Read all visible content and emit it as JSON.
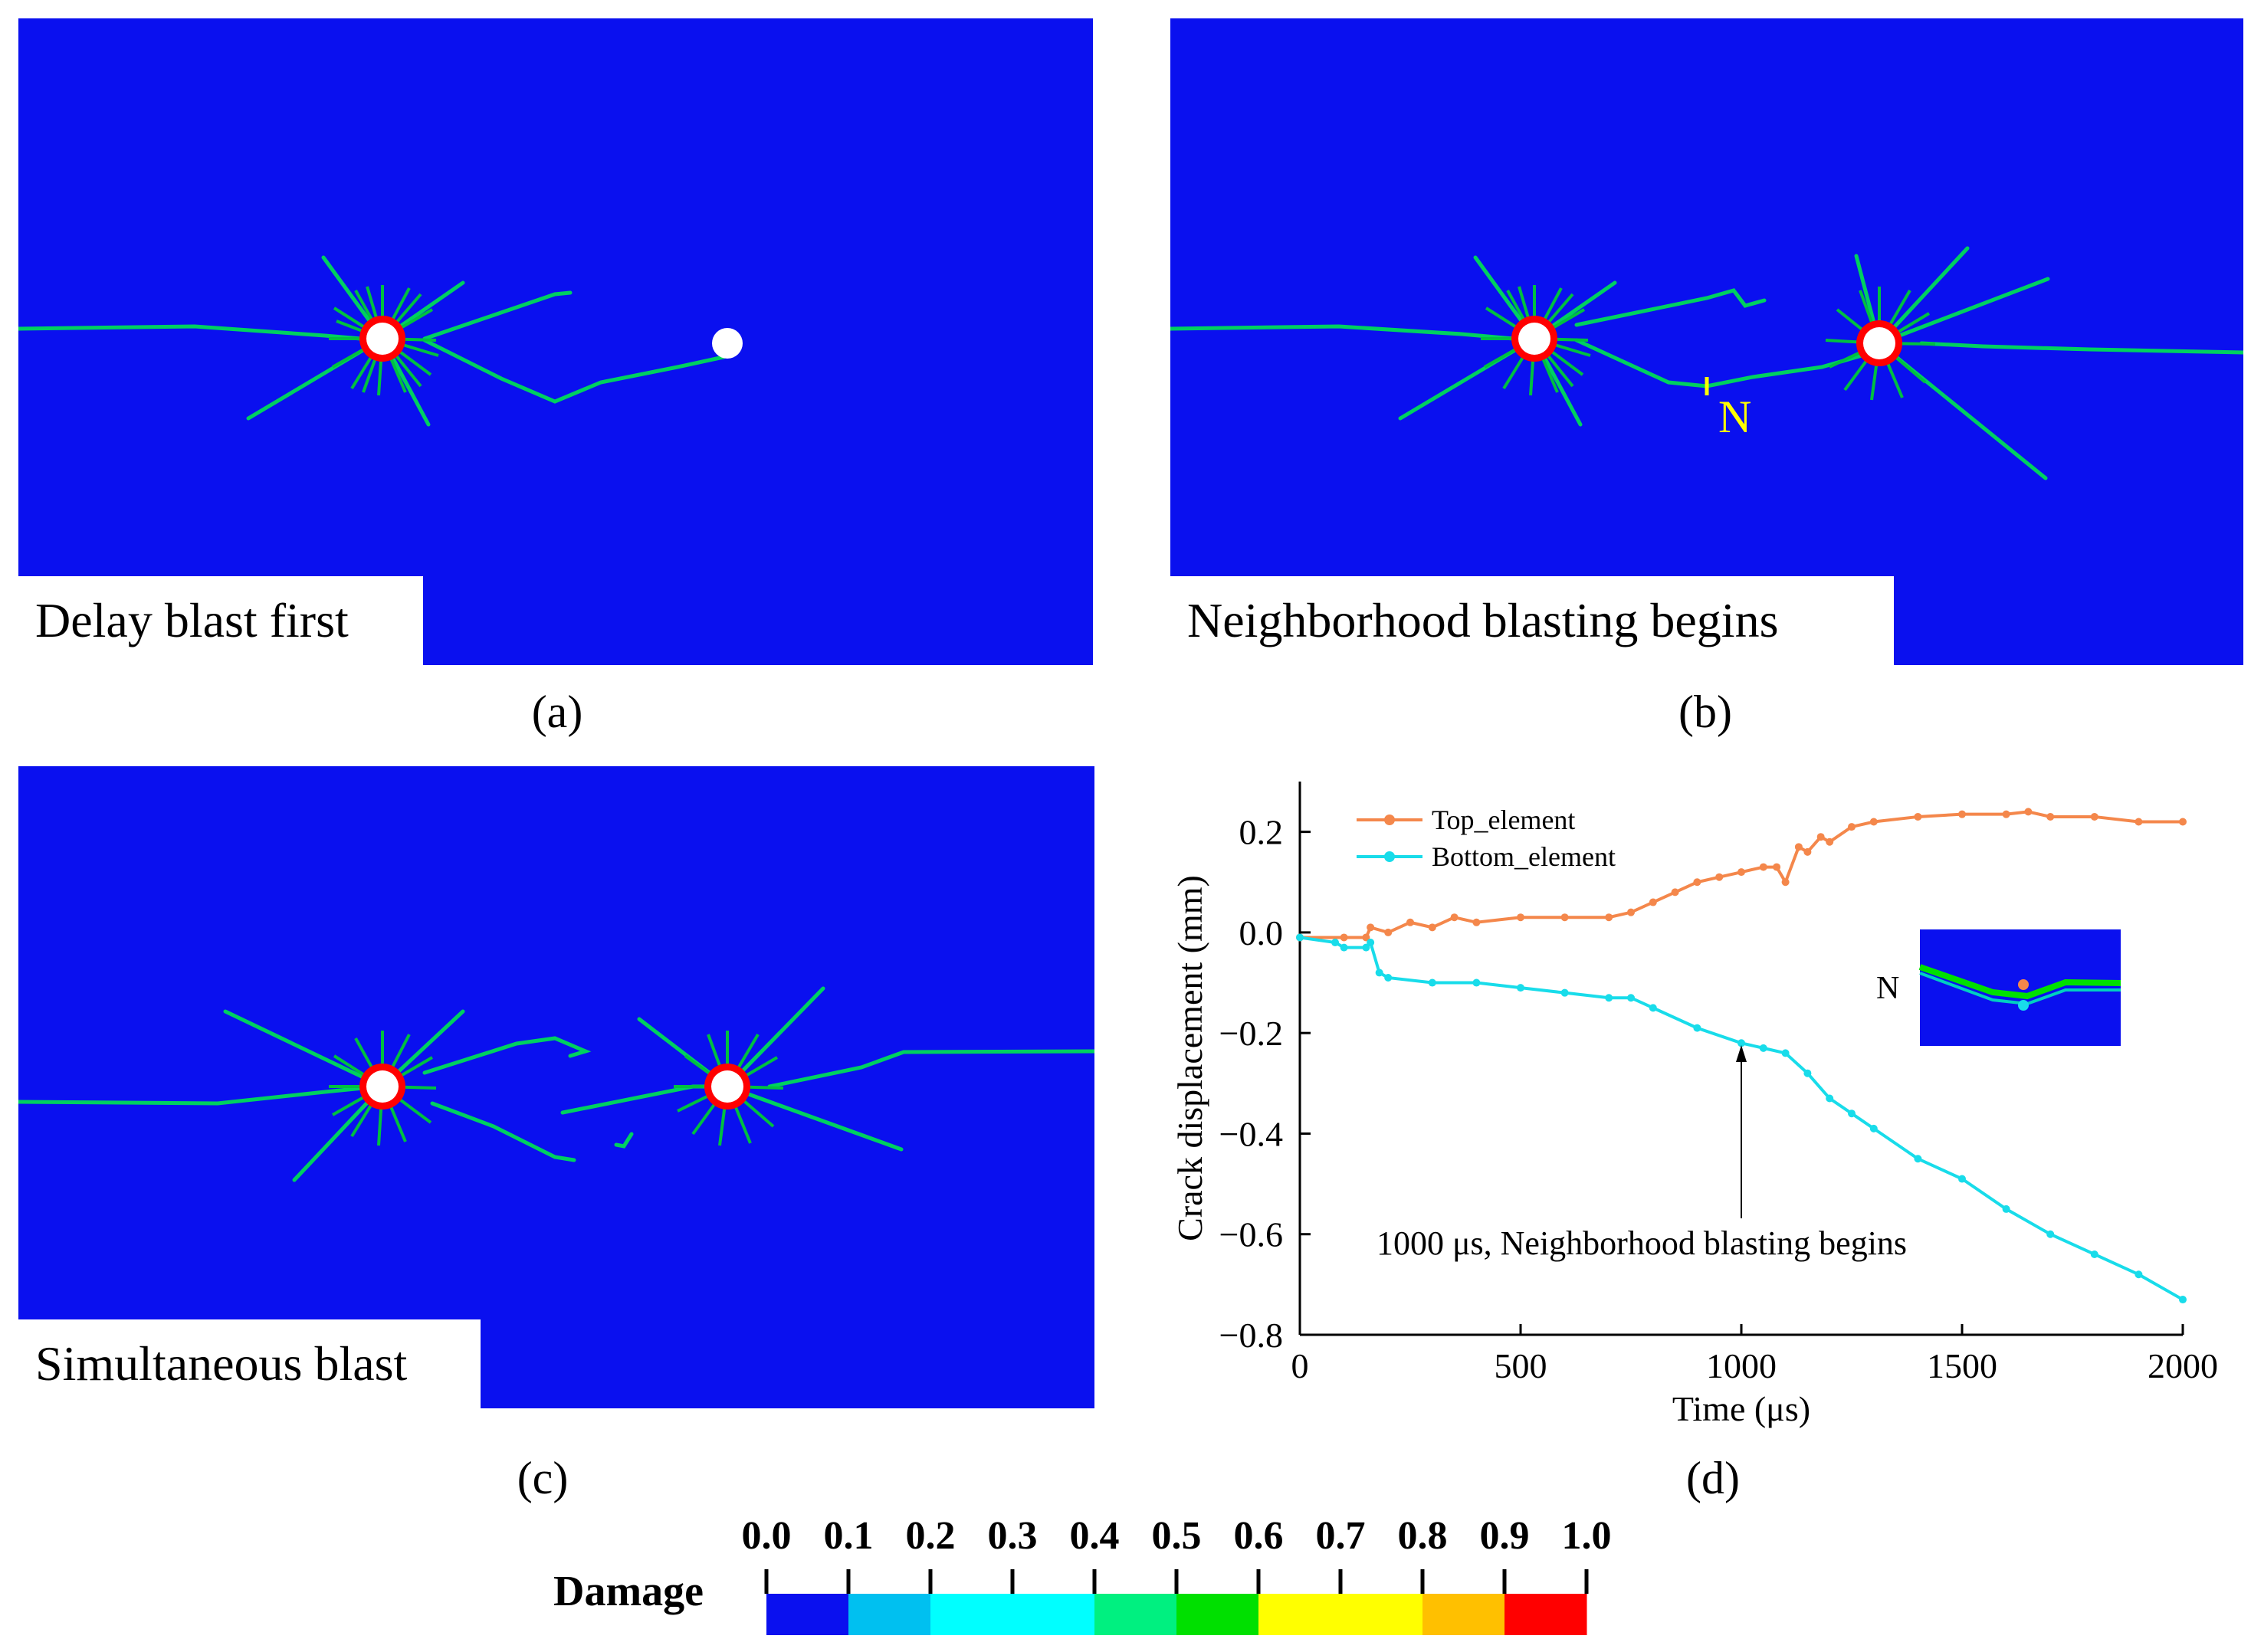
{
  "panels": {
    "a": {
      "label": "Delay blast first",
      "caption": "(a)"
    },
    "b": {
      "label": "Neighborhood blasting begins",
      "caption": "(b)",
      "marker": "N"
    },
    "c": {
      "label": "Simultaneous blast",
      "caption": "(c)"
    },
    "d": {
      "caption": "(d)"
    }
  },
  "chart_data": {
    "type": "line",
    "xlabel": "Time (μs)",
    "ylabel": "Crack displacement (mm)",
    "xlim": [
      0,
      2000
    ],
    "ylim": [
      -0.8,
      0.3
    ],
    "xticks": [
      0,
      500,
      1000,
      1500,
      2000
    ],
    "yticks": [
      0.2,
      0.0,
      -0.2,
      -0.4,
      -0.6,
      -0.8
    ],
    "ytick_labels": [
      "0.2",
      "0.0",
      "−0.2",
      "−0.4",
      "−0.6",
      "−0.8"
    ],
    "annotation": "1000 μs, Neighborhood blasting begins",
    "annotation_x": 1000,
    "inset_label": "N",
    "series": [
      {
        "name": "Top_element",
        "color": "#f4874b",
        "x": [
          0,
          100,
          150,
          160,
          200,
          250,
          300,
          350,
          400,
          500,
          600,
          700,
          750,
          800,
          850,
          900,
          950,
          1000,
          1050,
          1080,
          1100,
          1130,
          1150,
          1180,
          1200,
          1250,
          1300,
          1400,
          1500,
          1600,
          1650,
          1700,
          1800,
          1900,
          2000
        ],
        "values": [
          -0.01,
          -0.01,
          -0.01,
          0.01,
          0.0,
          0.02,
          0.01,
          0.03,
          0.02,
          0.03,
          0.03,
          0.03,
          0.04,
          0.06,
          0.08,
          0.1,
          0.11,
          0.12,
          0.13,
          0.13,
          0.1,
          0.17,
          0.16,
          0.19,
          0.18,
          0.21,
          0.22,
          0.23,
          0.235,
          0.235,
          0.24,
          0.23,
          0.23,
          0.22,
          0.22
        ]
      },
      {
        "name": "Bottom_element",
        "color": "#18dcea",
        "x": [
          0,
          80,
          100,
          150,
          160,
          180,
          200,
          300,
          400,
          500,
          600,
          700,
          750,
          800,
          900,
          1000,
          1050,
          1100,
          1150,
          1200,
          1250,
          1300,
          1400,
          1500,
          1600,
          1700,
          1800,
          1900,
          2000
        ],
        "values": [
          -0.01,
          -0.02,
          -0.03,
          -0.03,
          -0.02,
          -0.08,
          -0.09,
          -0.1,
          -0.1,
          -0.11,
          -0.12,
          -0.13,
          -0.13,
          -0.15,
          -0.19,
          -0.22,
          -0.23,
          -0.24,
          -0.28,
          -0.33,
          -0.36,
          -0.39,
          -0.45,
          -0.49,
          -0.55,
          -0.6,
          -0.64,
          -0.68,
          -0.73
        ]
      }
    ]
  },
  "colorbar": {
    "title": "Damage",
    "tick_labels": [
      "0.0",
      "0.1",
      "0.2",
      "0.3",
      "0.4",
      "0.5",
      "0.6",
      "0.7",
      "0.8",
      "0.9",
      "1.0"
    ],
    "colors": [
      "#0a10ef",
      "#00c0f0",
      "#00ffff",
      "#00ffff",
      "#00f080",
      "#00e000",
      "#ffff00",
      "#ffff00",
      "#ffc000",
      "#ff0000"
    ]
  }
}
